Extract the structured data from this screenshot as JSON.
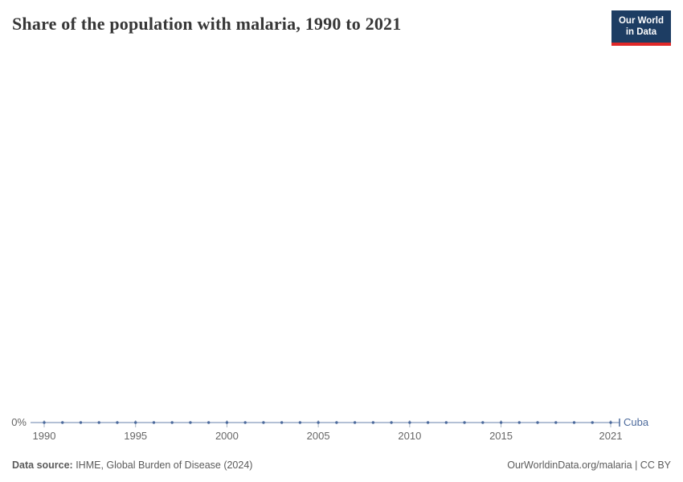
{
  "header": {
    "title": "Share of the population with malaria, 1990 to 2021",
    "logo": {
      "line1": "Our World",
      "line2": "in Data"
    }
  },
  "colors": {
    "series_blue": "#4c6a9c",
    "axis_tick": "#a8b4c4",
    "tick_label": "#666666",
    "logo_navy": "#1d3d63",
    "logo_red": "#e02828",
    "title_text": "#373737"
  },
  "chart_data": {
    "type": "line",
    "title": "Share of the population with malaria, 1990 to 2021",
    "x_start": 1990,
    "x_end": 2021,
    "x_ticks": [
      1990,
      1995,
      2000,
      2005,
      2010,
      2015,
      2021
    ],
    "x_tick_labels": [
      "1990",
      "1995",
      "2000",
      "2005",
      "2010",
      "2015",
      "2021"
    ],
    "y_tick_labels": [
      "0%"
    ],
    "ylim": [
      0,
      0
    ],
    "grid": false,
    "legend_position": "end-of-line",
    "series": [
      {
        "name": "Cuba",
        "color": "#4c6a9c",
        "x": [
          1990,
          1991,
          1992,
          1993,
          1994,
          1995,
          1996,
          1997,
          1998,
          1999,
          2000,
          2001,
          2002,
          2003,
          2004,
          2005,
          2006,
          2007,
          2008,
          2009,
          2010,
          2011,
          2012,
          2013,
          2014,
          2015,
          2016,
          2017,
          2018,
          2019,
          2020,
          2021
        ],
        "values": [
          0,
          0,
          0,
          0,
          0,
          0,
          0,
          0,
          0,
          0,
          0,
          0,
          0,
          0,
          0,
          0,
          0,
          0,
          0,
          0,
          0,
          0,
          0,
          0,
          0,
          0,
          0,
          0,
          0,
          0,
          0,
          0
        ]
      }
    ]
  },
  "footer": {
    "source_label": "Data source:",
    "source_text": " IHME, Global Burden of Disease (2024)",
    "right_text": "OurWorldinData.org/malaria | CC BY"
  }
}
